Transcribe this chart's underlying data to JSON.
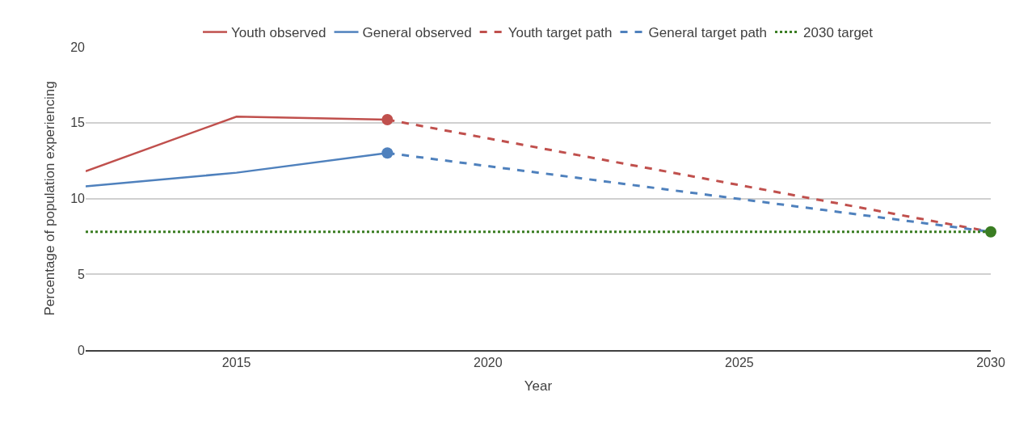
{
  "chart_data": {
    "type": "line",
    "xlabel": "Year",
    "ylabel": "Percentage of population experiencing",
    "series": [
      {
        "name": "Youth observed",
        "color": "#c0504d",
        "x": [
          2012,
          2015,
          2018
        ],
        "values": [
          11.8,
          15.4,
          15.2
        ],
        "line_style": "solid"
      },
      {
        "name": "General observed",
        "color": "#4f81bd",
        "x": [
          2012,
          2015,
          2018
        ],
        "values": [
          10.8,
          11.7,
          13.0
        ],
        "line_style": "solid"
      },
      {
        "name": "Youth target path",
        "color": "#c0504d",
        "x": [
          2018,
          2030
        ],
        "values": [
          15.2,
          7.8
        ],
        "line_style": "dashed"
      },
      {
        "name": "General target path",
        "color": "#4f81bd",
        "x": [
          2018,
          2030
        ],
        "values": [
          13.0,
          7.8
        ],
        "line_style": "dashed"
      },
      {
        "name": "2030 target",
        "color": "#3a7d22",
        "x": [
          2012,
          2030
        ],
        "values": [
          7.8,
          7.8
        ],
        "line_style": "dotted"
      },
      {
        "type": "scatter",
        "x": [
          2018,
          2018,
          2030
        ],
        "values": [
          15.2,
          13.0,
          7.8
        ],
        "colors": [
          "#c0504d",
          "#4f81bd",
          "#3a7d22"
        ],
        "marker": "circle"
      }
    ],
    "xlim": [
      2012,
      2030
    ],
    "xticks": [
      2015,
      2020,
      2025,
      2030
    ],
    "ylim": [
      0,
      20
    ],
    "yticks": [
      0,
      5,
      10,
      15,
      20
    ],
    "grid": "y",
    "legend": "top"
  }
}
